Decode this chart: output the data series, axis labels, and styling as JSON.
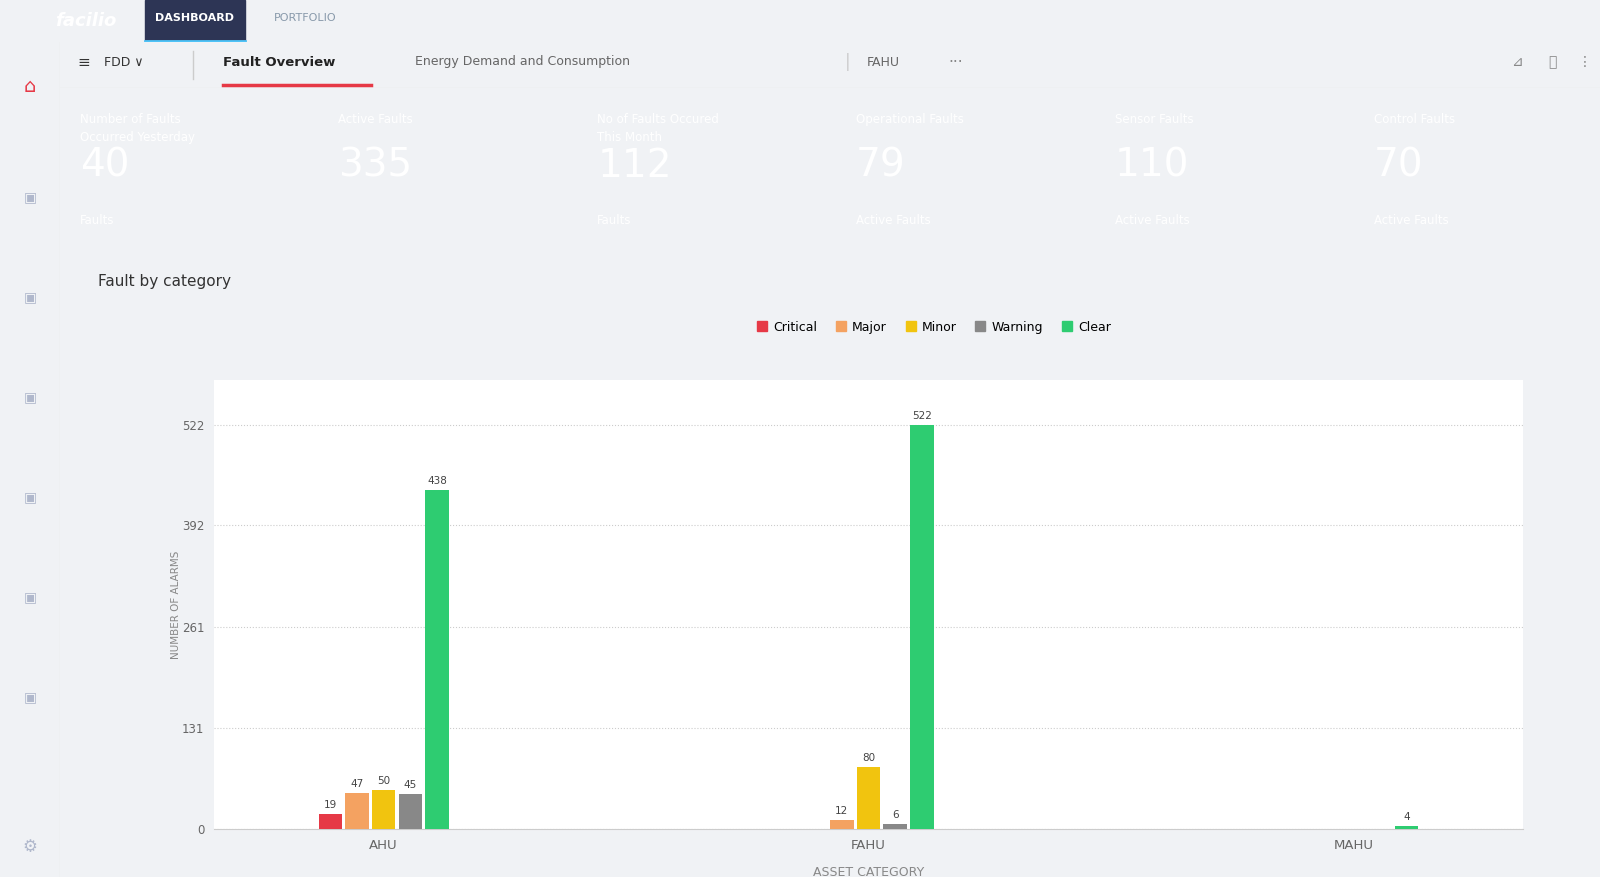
{
  "bg_color": "#f0f2f5",
  "nav_bg": "#1e2235",
  "title": "Fault by category",
  "cards": [
    {
      "title": "Number of Faults\nOccurred Yesterday",
      "value": "40",
      "subtitle": "Faults",
      "color": "#9068be"
    },
    {
      "title": "Active Faults",
      "value": "335",
      "subtitle": "",
      "color": "#f5c842"
    },
    {
      "title": "No of Faults Occured\nThis Month",
      "value": "112",
      "subtitle": "Faults",
      "color": "#f0527a"
    },
    {
      "title": "Operational Faults",
      "value": "79",
      "subtitle": "Active Faults",
      "color": "#2ab0c5"
    },
    {
      "title": "Sensor Faults",
      "value": "110",
      "subtitle": "Active Faults",
      "color": "#1a3a4a"
    },
    {
      "title": "Control Faults",
      "value": "70",
      "subtitle": "Active Faults",
      "color": "#2ec4a5"
    }
  ],
  "legend_labels": [
    "Critical",
    "Major",
    "Minor",
    "Warning",
    "Clear"
  ],
  "legend_colors": [
    "#e63946",
    "#f4a261",
    "#f1c40f",
    "#888888",
    "#2ecc71"
  ],
  "categories": [
    "AHU",
    "FAHU",
    "MAHU"
  ],
  "series": {
    "Critical": [
      19,
      0,
      0
    ],
    "Major": [
      47,
      12,
      0
    ],
    "Minor": [
      50,
      80,
      0
    ],
    "Warning": [
      45,
      6,
      0
    ],
    "Clear": [
      438,
      522,
      4
    ]
  },
  "bar_colors": {
    "Critical": "#e63946",
    "Major": "#f4a261",
    "Minor": "#f1c40f",
    "Warning": "#888888",
    "Clear": "#2ecc71"
  },
  "bar_labels": {
    "Critical": [
      19,
      null,
      null
    ],
    "Major": [
      47,
      12,
      null
    ],
    "Minor": [
      50,
      80,
      null
    ],
    "Warning": [
      45,
      6,
      null
    ],
    "Clear": [
      438,
      522,
      4
    ]
  },
  "yticks": [
    0,
    131,
    261,
    392,
    522
  ],
  "ylabel": "NUMBER OF ALARMS",
  "xlabel": "ASSET CATEGORY",
  "chart_bg": "#ffffff",
  "sidebar_color": "#ffffff",
  "sidebar_border": "#e8e8e8",
  "top_nav_color": "#1e2235",
  "subnav_color": "#ffffff",
  "subnav_border": "#e8e8e8",
  "icon_color": "#b0b8cc",
  "active_icon_color": "#e63946",
  "nav_underline_color": "#e63946",
  "dashboard_underline": "#4fc3f7"
}
